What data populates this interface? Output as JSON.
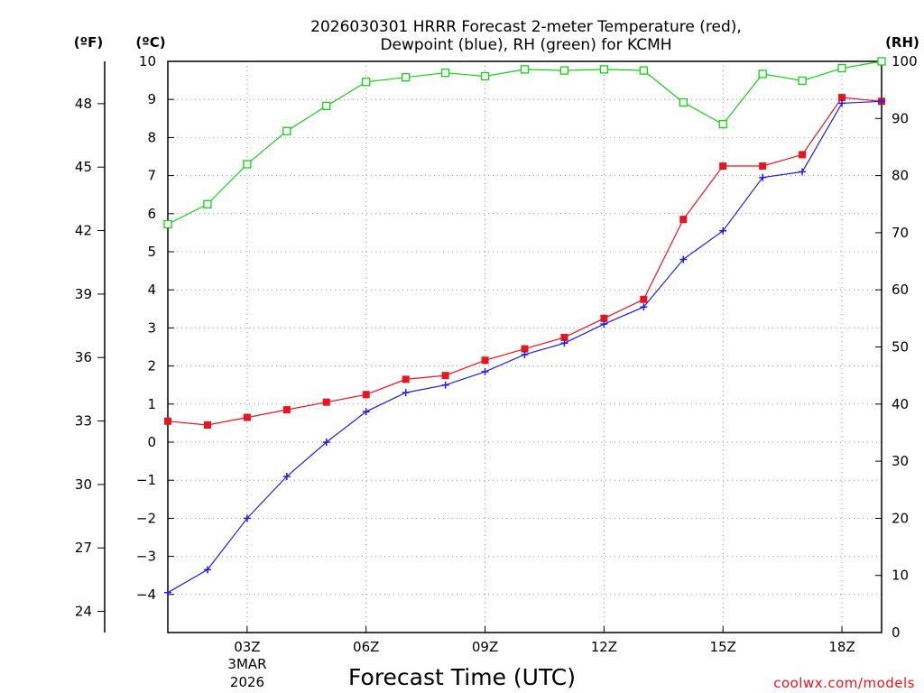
{
  "chart_data": {
    "type": "line",
    "title": [
      "2026030301 HRRR Forecast 2-meter Temperature (red),",
      "Dewpoint (blue), RH (green) for KCMH"
    ],
    "xlabel": "Forecast Time (UTC)",
    "date_label": [
      "3MAR",
      "2026"
    ],
    "credit": "coolwx.com/models",
    "axes": {
      "left_f": {
        "unit_label": "(ºF)",
        "ticks": [
          24,
          27,
          30,
          33,
          36,
          39,
          42,
          45,
          48
        ]
      },
      "left_c": {
        "unit_label": "(ºC)",
        "ylim": [
          -5,
          10
        ],
        "ticks": [
          -4,
          -3,
          -2,
          -1,
          0,
          1,
          2,
          3,
          4,
          5,
          6,
          7,
          8,
          9,
          10
        ]
      },
      "right_rh": {
        "unit_label": "(RH)",
        "ylim": [
          0,
          100
        ],
        "ticks": [
          0,
          10,
          20,
          30,
          40,
          50,
          60,
          70,
          80,
          90,
          100
        ]
      }
    },
    "x": {
      "hours": [
        1,
        2,
        3,
        4,
        5,
        6,
        7,
        8,
        9,
        10,
        11,
        12,
        13,
        14,
        15,
        16,
        17,
        18,
        19
      ],
      "xlim": [
        1,
        19
      ],
      "tick_hours": [
        3,
        6,
        9,
        12,
        15,
        18
      ],
      "tick_labels": [
        "03Z",
        "06Z",
        "09Z",
        "12Z",
        "15Z",
        "18Z"
      ]
    },
    "series": [
      {
        "name": "Temperature",
        "axis": "celsius",
        "color": "#e8141e",
        "marker": "filled-square",
        "values": [
          0.55,
          0.45,
          0.65,
          0.85,
          1.05,
          1.25,
          1.65,
          1.75,
          2.15,
          2.45,
          2.75,
          3.25,
          3.75,
          5.85,
          7.25,
          7.25,
          7.55,
          9.05,
          8.95
        ]
      },
      {
        "name": "Dewpoint",
        "axis": "celsius",
        "color": "#1e1ee6",
        "marker": "plus",
        "values": [
          -3.95,
          -3.35,
          -2.0,
          -0.9,
          0.0,
          0.8,
          1.3,
          1.5,
          1.85,
          2.3,
          2.6,
          3.1,
          3.55,
          4.8,
          5.55,
          6.95,
          7.1,
          8.9,
          8.95
        ]
      },
      {
        "name": "RH",
        "axis": "rh",
        "color": "#14d214",
        "marker": "open-square",
        "values": [
          71.5,
          75,
          82,
          87.8,
          92.2,
          96.4,
          97.2,
          98,
          97.4,
          98.6,
          98.4,
          98.6,
          98.4,
          92.8,
          89,
          97.8,
          96.6,
          98.8,
          100
        ]
      }
    ]
  }
}
